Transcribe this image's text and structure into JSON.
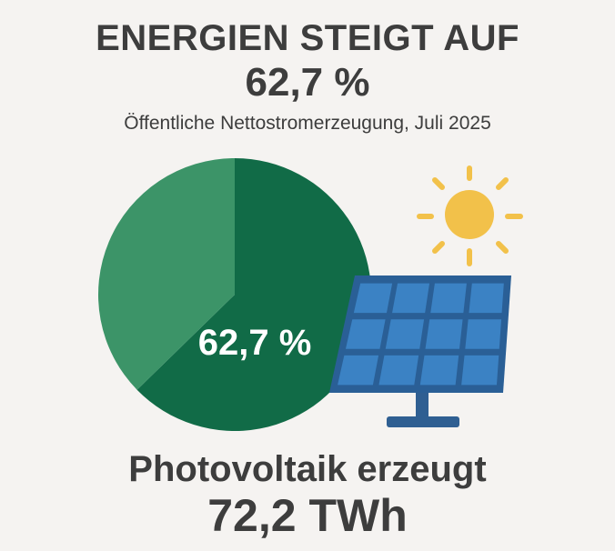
{
  "header": {
    "title": "ENERGIEN STEIGT AUF",
    "title_value": "62,7 %",
    "subtitle": "Öffentliche Nettostromerzeugung, Juli 2025"
  },
  "chart_data": {
    "type": "pie",
    "slices": [
      {
        "label": "",
        "value": 62.7,
        "color": "#116b47"
      },
      {
        "label": "",
        "value": 37.3,
        "color": "#3c9468"
      }
    ],
    "center_label": "62,7 %"
  },
  "footer": {
    "caption": "Photovoltaik erzeugt",
    "value": "72,2 TWh"
  },
  "colors": {
    "background": "#f5f3f1",
    "text": "#3d3d3d",
    "pie_dark_green": "#116b47",
    "pie_light_green": "#3c9468",
    "sun": "#f2c14a",
    "panel_cell": "#3b82c4",
    "panel_frame": "#2a5f96",
    "stand": "#2f5f92"
  },
  "icons": [
    "sun-icon",
    "solar-panel-icon"
  ]
}
